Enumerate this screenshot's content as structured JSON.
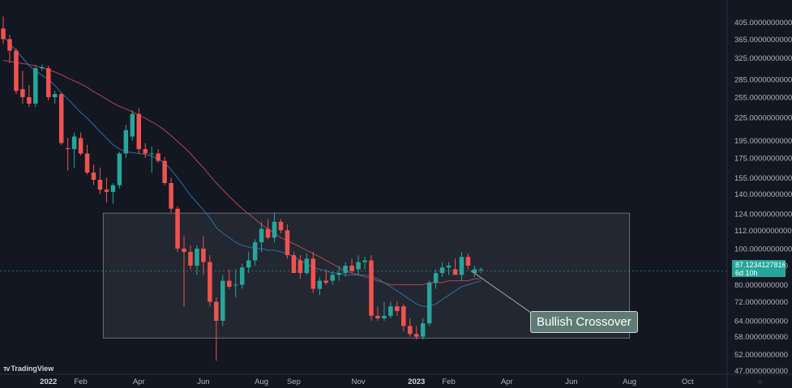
{
  "app": {
    "brand": "TradingView"
  },
  "colors": {
    "background": "#131722",
    "up": "#26a69a",
    "down": "#ef5350",
    "ma_fast": "#2f6fa3",
    "ma_slow": "#b24552",
    "range_box": "#ffffff",
    "axis_text": "#b2b5be"
  },
  "price_tag": {
    "value": "87.1234127816",
    "countdown": "6d 10h"
  },
  "annotation": {
    "text": "Bullish Crossover"
  },
  "chart_data": {
    "type": "candlestick",
    "title": "",
    "scale": "log",
    "ylim": [
      46,
      465
    ],
    "y_ticks": [
      "405.0000000000",
      "365.0000000000",
      "325.0000000000",
      "285.0000000000",
      "255.0000000000",
      "225.0000000000",
      "195.0000000000",
      "175.0000000000",
      "155.0000000000",
      "140.0000000000",
      "124.0000000000",
      "112.0000000000",
      "100.0000000000",
      "90.0000000000",
      "80.0000000000",
      "72.0000000000",
      "64.0000000000",
      "58.0000000000",
      "52.0000000000",
      "47.0000000000"
    ],
    "x_ticks": [
      {
        "label": "2022",
        "bold": true,
        "index": 7
      },
      {
        "label": "Feb",
        "bold": false,
        "index": 12
      },
      {
        "label": "Apr",
        "bold": false,
        "index": 21
      },
      {
        "label": "Jun",
        "bold": false,
        "index": 31
      },
      {
        "label": "Aug",
        "bold": false,
        "index": 40
      },
      {
        "label": "Sep",
        "bold": false,
        "index": 45
      },
      {
        "label": "Nov",
        "bold": false,
        "index": 55
      },
      {
        "label": "2023",
        "bold": true,
        "index": 64
      },
      {
        "label": "Feb",
        "bold": false,
        "index": 69
      },
      {
        "label": "Apr",
        "bold": false,
        "index": 78
      },
      {
        "label": "Jun",
        "bold": false,
        "index": 88
      },
      {
        "label": "Aug",
        "bold": false,
        "index": 97
      },
      {
        "label": "Oct",
        "bold": false,
        "index": 106
      }
    ],
    "index_range": [
      0,
      113
    ],
    "candles": [
      {
        "o": 390,
        "h": 420,
        "l": 355,
        "c": 365
      },
      {
        "o": 365,
        "h": 375,
        "l": 315,
        "c": 340
      },
      {
        "o": 340,
        "h": 345,
        "l": 260,
        "c": 265
      },
      {
        "o": 268,
        "h": 300,
        "l": 245,
        "c": 255
      },
      {
        "o": 255,
        "h": 275,
        "l": 240,
        "c": 245
      },
      {
        "o": 245,
        "h": 310,
        "l": 240,
        "c": 305
      },
      {
        "o": 305,
        "h": 312,
        "l": 300,
        "c": 307
      },
      {
        "o": 305,
        "h": 310,
        "l": 250,
        "c": 255
      },
      {
        "o": 255,
        "h": 265,
        "l": 245,
        "c": 260
      },
      {
        "o": 260,
        "h": 262,
        "l": 190,
        "c": 192
      },
      {
        "o": 186,
        "h": 198,
        "l": 162,
        "c": 185
      },
      {
        "o": 185,
        "h": 205,
        "l": 165,
        "c": 200
      },
      {
        "o": 198,
        "h": 205,
        "l": 178,
        "c": 180
      },
      {
        "o": 180,
        "h": 190,
        "l": 158,
        "c": 160
      },
      {
        "o": 160,
        "h": 168,
        "l": 148,
        "c": 153
      },
      {
        "o": 153,
        "h": 165,
        "l": 140,
        "c": 144
      },
      {
        "o": 144,
        "h": 155,
        "l": 133,
        "c": 142
      },
      {
        "o": 142,
        "h": 150,
        "l": 132,
        "c": 148
      },
      {
        "o": 148,
        "h": 182,
        "l": 145,
        "c": 180
      },
      {
        "o": 180,
        "h": 215,
        "l": 175,
        "c": 208
      },
      {
        "o": 200,
        "h": 235,
        "l": 195,
        "c": 230
      },
      {
        "o": 230,
        "h": 238,
        "l": 180,
        "c": 185
      },
      {
        "o": 185,
        "h": 192,
        "l": 175,
        "c": 180
      },
      {
        "o": 180,
        "h": 188,
        "l": 160,
        "c": 180
      },
      {
        "o": 180,
        "h": 185,
        "l": 170,
        "c": 172
      },
      {
        "o": 172,
        "h": 176,
        "l": 148,
        "c": 150
      },
      {
        "o": 150,
        "h": 155,
        "l": 125,
        "c": 128
      },
      {
        "o": 128,
        "h": 130,
        "l": 98,
        "c": 100
      },
      {
        "o": 100,
        "h": 108,
        "l": 70,
        "c": 98
      },
      {
        "o": 98,
        "h": 102,
        "l": 88,
        "c": 90
      },
      {
        "o": 90,
        "h": 102,
        "l": 85,
        "c": 100
      },
      {
        "o": 100,
        "h": 108,
        "l": 85,
        "c": 92
      },
      {
        "o": 92,
        "h": 96,
        "l": 70,
        "c": 72
      },
      {
        "o": 72,
        "h": 74,
        "l": 50,
        "c": 64
      },
      {
        "o": 64,
        "h": 85,
        "l": 62,
        "c": 82
      },
      {
        "o": 82,
        "h": 88,
        "l": 78,
        "c": 79
      },
      {
        "o": 80,
        "h": 88,
        "l": 74,
        "c": 80
      },
      {
        "o": 80,
        "h": 91,
        "l": 78,
        "c": 89
      },
      {
        "o": 89,
        "h": 98,
        "l": 86,
        "c": 93
      },
      {
        "o": 93,
        "h": 106,
        "l": 90,
        "c": 104
      },
      {
        "o": 104,
        "h": 118,
        "l": 98,
        "c": 113
      },
      {
        "o": 113,
        "h": 120,
        "l": 106,
        "c": 107
      },
      {
        "o": 107,
        "h": 125,
        "l": 104,
        "c": 118
      },
      {
        "o": 118,
        "h": 120,
        "l": 110,
        "c": 112
      },
      {
        "o": 112,
        "h": 116,
        "l": 94,
        "c": 96
      },
      {
        "o": 96,
        "h": 98,
        "l": 87,
        "c": 86
      },
      {
        "o": 93,
        "h": 96,
        "l": 83,
        "c": 86
      },
      {
        "o": 86,
        "h": 97,
        "l": 85,
        "c": 94
      },
      {
        "o": 94,
        "h": 98,
        "l": 76,
        "c": 78
      },
      {
        "o": 78,
        "h": 84,
        "l": 75,
        "c": 82
      },
      {
        "o": 82,
        "h": 88,
        "l": 80,
        "c": 81
      },
      {
        "o": 82,
        "h": 87,
        "l": 80,
        "c": 85
      },
      {
        "o": 85,
        "h": 90,
        "l": 82,
        "c": 86
      },
      {
        "o": 86,
        "h": 92,
        "l": 84,
        "c": 90
      },
      {
        "o": 90,
        "h": 94,
        "l": 86,
        "c": 87
      },
      {
        "o": 88,
        "h": 96,
        "l": 85,
        "c": 92
      },
      {
        "o": 92,
        "h": 95,
        "l": 88,
        "c": 93
      },
      {
        "o": 93,
        "h": 96,
        "l": 64,
        "c": 66
      },
      {
        "o": 66,
        "h": 70,
        "l": 64,
        "c": 65
      },
      {
        "o": 65,
        "h": 72,
        "l": 64,
        "c": 66
      },
      {
        "o": 66,
        "h": 72,
        "l": 65,
        "c": 70
      },
      {
        "o": 70,
        "h": 72,
        "l": 66,
        "c": 68
      },
      {
        "o": 70,
        "h": 71,
        "l": 60,
        "c": 62
      },
      {
        "o": 62,
        "h": 65,
        "l": 58,
        "c": 59
      },
      {
        "o": 59,
        "h": 62,
        "l": 57,
        "c": 58
      },
      {
        "o": 58,
        "h": 65,
        "l": 57,
        "c": 63
      },
      {
        "o": 63,
        "h": 82,
        "l": 62,
        "c": 81
      },
      {
        "o": 81,
        "h": 88,
        "l": 78,
        "c": 86
      },
      {
        "o": 86,
        "h": 92,
        "l": 84,
        "c": 89
      },
      {
        "o": 89,
        "h": 92,
        "l": 85,
        "c": 90
      },
      {
        "o": 88,
        "h": 94,
        "l": 86,
        "c": 85
      },
      {
        "o": 85,
        "h": 98,
        "l": 82,
        "c": 95
      },
      {
        "o": 95,
        "h": 97,
        "l": 88,
        "c": 90
      },
      {
        "o": 86,
        "h": 90,
        "l": 84,
        "c": 88
      },
      {
        "o": 88,
        "h": 89,
        "l": 86,
        "c": 88
      }
    ],
    "ma_fast": [
      372,
      355,
      340,
      325,
      310,
      300,
      292,
      285,
      274,
      262,
      252,
      242,
      232,
      224,
      215,
      206,
      198,
      190,
      185,
      182,
      181,
      180,
      179,
      177,
      174,
      170,
      163,
      155,
      147,
      139,
      133,
      127,
      121,
      114,
      110,
      107,
      104,
      102,
      101,
      100,
      100,
      99,
      99,
      98,
      97,
      95,
      93,
      91,
      89,
      88,
      87,
      86,
      86,
      85,
      85,
      85,
      85,
      84,
      83,
      81,
      79,
      77,
      75,
      73,
      71,
      70,
      70,
      71,
      73,
      75,
      77,
      79,
      80,
      81,
      82
    ],
    "ma_slow": [
      320,
      318,
      316,
      314,
      312,
      310,
      306,
      302,
      298,
      293,
      287,
      282,
      277,
      271,
      264,
      258,
      252,
      246,
      241,
      237,
      233,
      228,
      224,
      219,
      214,
      208,
      201,
      194,
      187,
      180,
      172,
      165,
      157,
      150,
      144,
      138,
      133,
      128,
      124,
      120,
      116,
      113,
      110,
      107,
      105,
      103,
      101,
      99,
      97,
      95,
      93,
      91,
      89,
      87,
      86,
      85,
      84,
      83,
      82,
      81,
      80,
      80,
      80,
      80,
      80,
      80,
      81,
      81,
      81,
      82,
      82,
      82,
      82,
      83,
      83
    ],
    "range_box": {
      "top": 124.5,
      "bottom": 57.5,
      "index_from": 16,
      "index_to": 97
    },
    "current_price": 87.1234127816
  }
}
